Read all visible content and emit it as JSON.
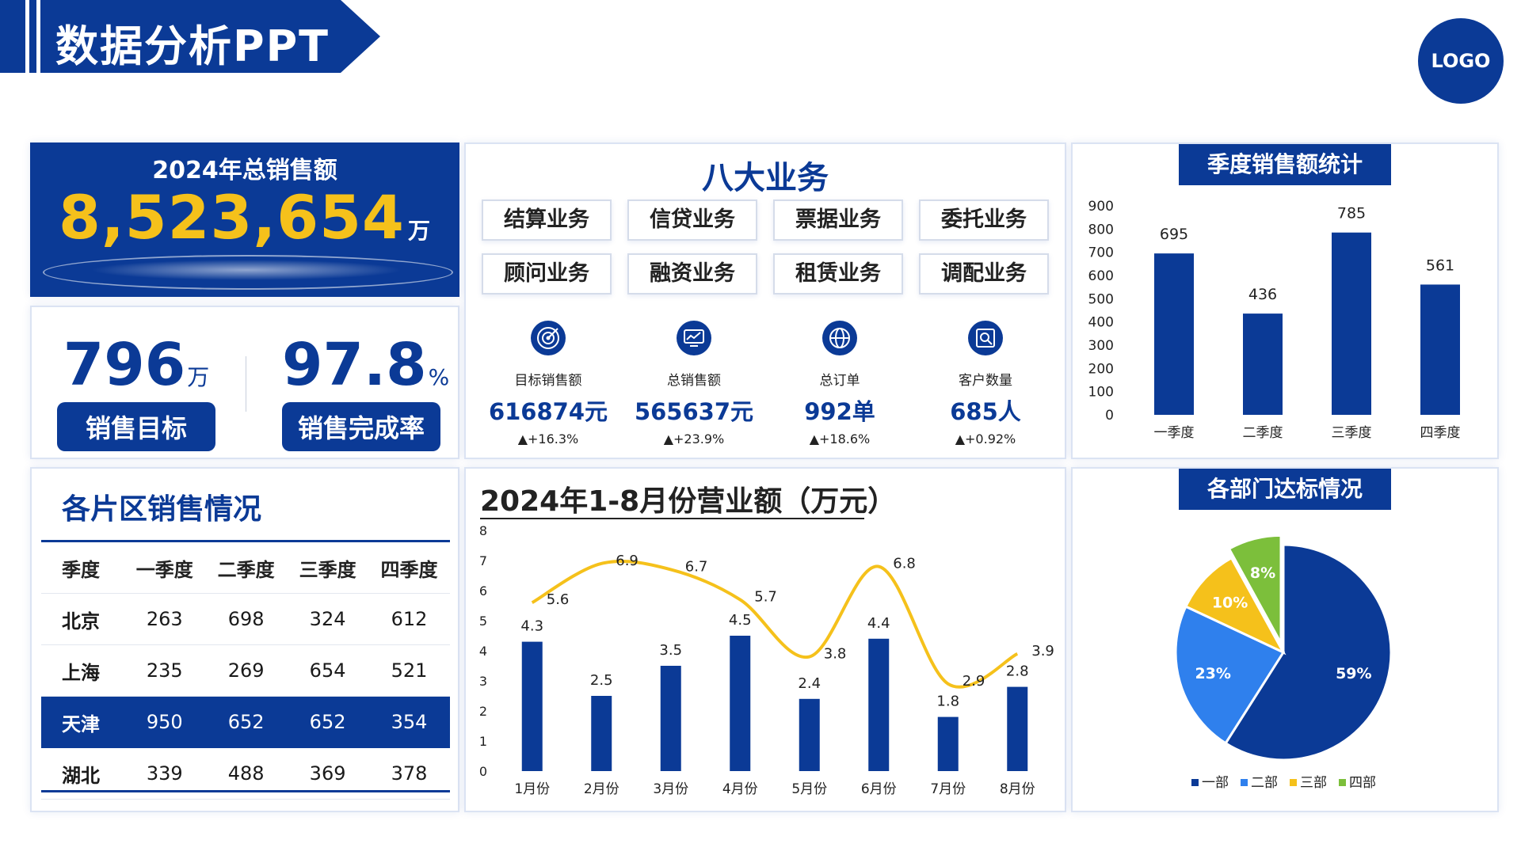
{
  "header": {
    "title": "数据分析PPT",
    "logo": "LOGO"
  },
  "total_sales": {
    "title": "2024年总销售额",
    "value": "8,523,654",
    "unit": "万"
  },
  "kpis": [
    {
      "value": "796",
      "unit": "万",
      "label": "销售目标"
    },
    {
      "value": "97.8",
      "unit": "%",
      "label": "销售完成率"
    }
  ],
  "business": {
    "title": "八大业务",
    "items": [
      "结算业务",
      "信贷业务",
      "票据业务",
      "委托业务",
      "顾问业务",
      "融资业务",
      "租赁业务",
      "调配业务"
    ],
    "metrics": [
      {
        "icon": "target-icon",
        "label": "目标销售额",
        "value": "616874元",
        "change": "▲+16.3%"
      },
      {
        "icon": "monitor-chart-icon",
        "label": "总销售额",
        "value": "565637元",
        "change": "▲+23.9%"
      },
      {
        "icon": "globe-icon",
        "label": "总订单",
        "value": "992单",
        "change": "▲+18.6%"
      },
      {
        "icon": "customer-search-icon",
        "label": "客户数量",
        "value": "685人",
        "change": "▲+0.92%"
      }
    ]
  },
  "quarterly": {
    "title": "季度销售额统计"
  },
  "region": {
    "title": "各片区销售情况",
    "columns": [
      "季度",
      "一季度",
      "二季度",
      "三季度",
      "四季度"
    ],
    "rows": [
      [
        "北京",
        "263",
        "698",
        "324",
        "612"
      ],
      [
        "上海",
        "235",
        "269",
        "654",
        "521"
      ],
      [
        "天津",
        "950",
        "652",
        "652",
        "354"
      ],
      [
        "湖北",
        "339",
        "488",
        "369",
        "378"
      ]
    ]
  },
  "monthly": {
    "title": "2024年1-8月份营业额（万元）"
  },
  "dept": {
    "title": "各部门达标情况"
  },
  "colors": {
    "primary": "#0b3a96",
    "gold": "#f5c11b",
    "blue2": "#2f80ed",
    "green": "#7cbf3b"
  },
  "chart_data": [
    {
      "type": "bar",
      "title": "季度销售额统计",
      "categories": [
        "一季度",
        "二季度",
        "三季度",
        "四季度"
      ],
      "values": [
        695,
        436,
        785,
        561
      ],
      "ylim": [
        0,
        900
      ],
      "yticks": [
        0,
        100,
        200,
        300,
        400,
        500,
        600,
        700,
        800,
        900
      ],
      "grid": false
    },
    {
      "type": "bar",
      "title": "2024年1-8月份营业额（万元）",
      "categories": [
        "1月份",
        "2月份",
        "3月份",
        "4月份",
        "5月份",
        "6月份",
        "7月份",
        "8月份"
      ],
      "series": [
        {
          "type": "bar",
          "values": [
            4.3,
            2.5,
            3.5,
            4.5,
            2.4,
            4.4,
            1.8,
            2.8
          ]
        },
        {
          "type": "line",
          "values": [
            5.6,
            6.9,
            6.7,
            5.7,
            3.8,
            6.8,
            2.9,
            3.9
          ]
        }
      ],
      "ylim": [
        0,
        8
      ],
      "yticks": [
        0,
        1,
        2,
        3,
        4,
        5,
        6,
        7,
        8
      ],
      "grid": false
    },
    {
      "type": "pie",
      "title": "各部门达标情况",
      "categories": [
        "一部",
        "二部",
        "三部",
        "四部"
      ],
      "values": [
        59,
        23,
        10,
        8
      ],
      "labels": [
        "59%",
        "23%",
        "10%",
        "8%"
      ],
      "legend": "bottom"
    }
  ]
}
